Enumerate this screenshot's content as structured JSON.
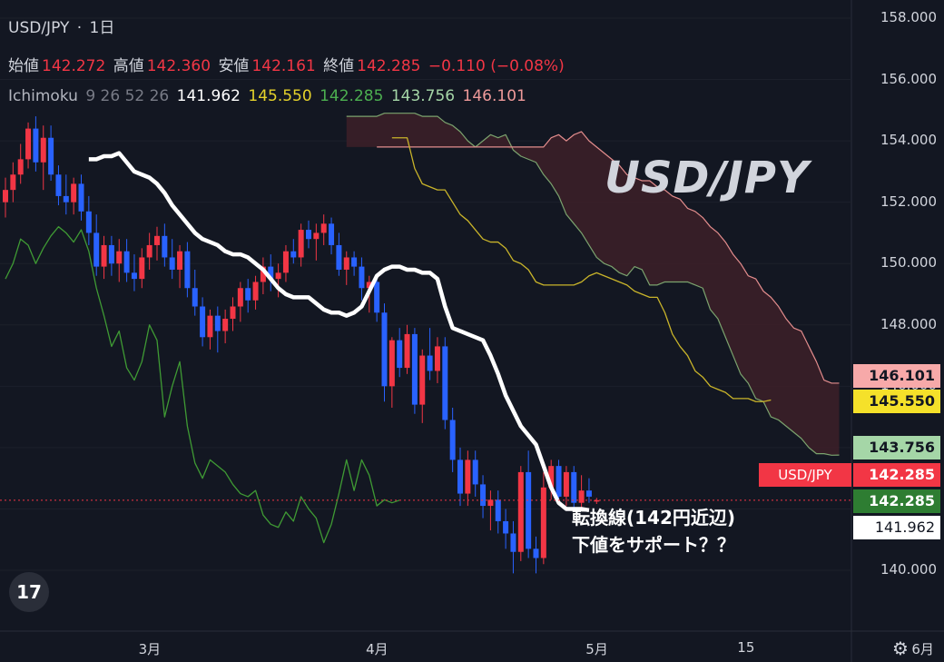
{
  "header": {
    "symbol": "USD/JPY",
    "sep": "·",
    "interval": "1日",
    "open_label": "始値",
    "open": "142.272",
    "high_label": "高値",
    "high": "142.360",
    "low_label": "安値",
    "low": "142.161",
    "close_label": "終値",
    "close": "142.285",
    "change": "−0.110 (−0.08%)",
    "indicator_name": "Ichimoku",
    "indicator_params": "9 26 52 26",
    "ind_v1": "141.962",
    "ind_v2": "145.550",
    "ind_v3": "142.285",
    "ind_v4": "143.756",
    "ind_v5": "146.101"
  },
  "overlay_title": "USD/JPY",
  "annotation": {
    "line1": "転換線(142円近辺)",
    "line2": "下値をサポート？？"
  },
  "badges": {
    "senkou_b": "146.101",
    "kijun": "145.550",
    "senkou_a": "143.756",
    "symbol_label": "USD/JPY",
    "price": "142.285",
    "chikou": "142.285",
    "tenkan": "141.962"
  },
  "logo_text": "17",
  "colors": {
    "background": "#131722",
    "up": "#f23645",
    "down": "#2962ff",
    "tenkan": "#ffffff",
    "kijun": "#c9b42a",
    "chikou": "#3f9a34",
    "senkou_a": "#7ba36e",
    "senkou_b": "#e38d8d",
    "cloud": "#3d2028"
  },
  "chart_data": {
    "type": "candlestick",
    "title": "USD/JPY",
    "interval": "1日",
    "ylim": [
      138.5,
      158.5
    ],
    "yticks": [
      140.0,
      142.0,
      144.0,
      146.0,
      148.0,
      150.0,
      152.0,
      154.0,
      156.0,
      158.0
    ],
    "ytick_labels": [
      "140.000",
      "142.000",
      "144.000",
      "146.000",
      "148.000",
      "150.000",
      "152.000",
      "154.000",
      "156.000",
      "158.000"
    ],
    "xticks": [
      {
        "label": "3月",
        "bar": 19
      },
      {
        "label": "4月",
        "bar": 49
      },
      {
        "label": "5月",
        "bar": 78
      },
      {
        "label": "15",
        "bar": 98
      },
      {
        "label": "6月",
        "bar": 121
      }
    ],
    "ohlc": [
      [
        152.0,
        152.8,
        151.5,
        152.4
      ],
      [
        152.4,
        153.3,
        152.0,
        152.9
      ],
      [
        152.9,
        153.9,
        152.6,
        153.4
      ],
      [
        153.4,
        154.6,
        153.1,
        154.4
      ],
      [
        154.4,
        154.8,
        153.0,
        153.3
      ],
      [
        153.3,
        154.5,
        152.4,
        154.1
      ],
      [
        154.1,
        154.5,
        152.7,
        152.9
      ],
      [
        152.9,
        153.2,
        151.9,
        152.2
      ],
      [
        152.2,
        152.9,
        151.6,
        152.0
      ],
      [
        152.0,
        152.8,
        151.6,
        152.6
      ],
      [
        152.6,
        152.9,
        151.4,
        151.7
      ],
      [
        151.7,
        152.2,
        150.6,
        151.0
      ],
      [
        151.0,
        151.6,
        149.6,
        149.9
      ],
      [
        149.9,
        150.9,
        149.5,
        150.6
      ],
      [
        150.6,
        150.9,
        149.6,
        150.0
      ],
      [
        150.0,
        150.8,
        149.4,
        150.4
      ],
      [
        150.4,
        150.8,
        149.4,
        149.7
      ],
      [
        149.7,
        150.3,
        149.1,
        149.5
      ],
      [
        149.5,
        150.5,
        149.2,
        150.2
      ],
      [
        150.2,
        151.0,
        149.8,
        150.6
      ],
      [
        150.6,
        151.2,
        150.1,
        150.9
      ],
      [
        150.9,
        151.3,
        149.9,
        150.2
      ],
      [
        150.2,
        150.8,
        149.5,
        149.8
      ],
      [
        149.8,
        150.6,
        149.2,
        150.4
      ],
      [
        150.4,
        150.7,
        148.9,
        149.2
      ],
      [
        149.2,
        149.8,
        148.3,
        148.6
      ],
      [
        148.6,
        148.9,
        147.3,
        147.6
      ],
      [
        147.6,
        148.5,
        147.2,
        148.3
      ],
      [
        148.3,
        148.6,
        147.1,
        147.8
      ],
      [
        147.8,
        148.5,
        147.4,
        148.2
      ],
      [
        148.2,
        148.9,
        147.8,
        148.6
      ],
      [
        148.6,
        149.4,
        148.1,
        149.2
      ],
      [
        149.2,
        149.5,
        148.4,
        148.8
      ],
      [
        148.8,
        149.6,
        148.5,
        149.4
      ],
      [
        149.4,
        150.2,
        149.0,
        149.9
      ],
      [
        149.9,
        150.3,
        149.1,
        149.5
      ],
      [
        149.5,
        150.0,
        148.9,
        149.7
      ],
      [
        149.7,
        150.6,
        149.4,
        150.4
      ],
      [
        150.4,
        150.8,
        150.0,
        150.2
      ],
      [
        150.2,
        151.3,
        149.9,
        151.1
      ],
      [
        151.1,
        151.4,
        150.5,
        150.8
      ],
      [
        150.8,
        151.3,
        150.1,
        151.0
      ],
      [
        151.0,
        151.6,
        150.6,
        151.3
      ],
      [
        151.3,
        151.5,
        150.3,
        150.6
      ],
      [
        150.6,
        151.0,
        149.6,
        149.8
      ],
      [
        149.8,
        150.4,
        149.3,
        150.2
      ],
      [
        150.2,
        150.4,
        149.6,
        149.9
      ],
      [
        149.9,
        150.2,
        148.8,
        149.2
      ],
      [
        149.2,
        149.6,
        148.4,
        149.4
      ],
      [
        149.4,
        149.6,
        148.1,
        148.4
      ],
      [
        148.4,
        148.7,
        145.5,
        146.0
      ],
      [
        146.0,
        147.6,
        145.3,
        147.5
      ],
      [
        147.5,
        147.9,
        146.3,
        146.6
      ],
      [
        146.6,
        148.0,
        146.4,
        147.7
      ],
      [
        147.7,
        147.9,
        145.1,
        145.4
      ],
      [
        145.4,
        147.2,
        144.8,
        147.0
      ],
      [
        147.0,
        147.9,
        146.2,
        146.5
      ],
      [
        146.5,
        147.6,
        146.1,
        147.3
      ],
      [
        147.3,
        147.6,
        144.6,
        144.9
      ],
      [
        144.9,
        145.3,
        143.2,
        143.6
      ],
      [
        143.6,
        144.0,
        142.1,
        142.5
      ],
      [
        142.5,
        143.9,
        142.1,
        143.6
      ],
      [
        143.6,
        143.9,
        142.4,
        142.8
      ],
      [
        142.8,
        143.1,
        141.7,
        142.1
      ],
      [
        142.1,
        142.6,
        141.3,
        142.3
      ],
      [
        142.3,
        142.6,
        141.2,
        141.6
      ],
      [
        141.6,
        142.0,
        140.7,
        141.2
      ],
      [
        141.2,
        141.6,
        139.9,
        140.6
      ],
      [
        140.6,
        143.4,
        140.3,
        143.2
      ],
      [
        143.2,
        143.9,
        140.4,
        140.7
      ],
      [
        140.7,
        141.1,
        139.9,
        140.4
      ],
      [
        140.4,
        143.2,
        140.2,
        142.7
      ],
      [
        142.7,
        143.6,
        142.3,
        143.4
      ],
      [
        143.4,
        143.6,
        142.2,
        142.4
      ],
      [
        142.4,
        143.4,
        142.1,
        143.2
      ],
      [
        143.2,
        143.4,
        142.0,
        142.2
      ],
      [
        142.2,
        143.1,
        142.0,
        142.6
      ],
      [
        142.6,
        143.0,
        142.2,
        142.4
      ],
      [
        142.272,
        142.36,
        142.161,
        142.285
      ]
    ],
    "tenkan": [
      153.4,
      153.4,
      153.5,
      153.5,
      153.6,
      153.3,
      153.0,
      152.9,
      152.8,
      152.6,
      152.3,
      151.9,
      151.6,
      151.3,
      151.0,
      150.8,
      150.7,
      150.6,
      150.4,
      150.3,
      150.3,
      150.2,
      150.0,
      149.8,
      149.5,
      149.2,
      149.0,
      148.9,
      148.9,
      148.9,
      148.7,
      148.5,
      148.4,
      148.4,
      148.3,
      148.4,
      148.6,
      149.1,
      149.6,
      149.8,
      149.9,
      149.9,
      149.8,
      149.8,
      149.7,
      149.7,
      149.5,
      148.6,
      147.9,
      147.8,
      147.7,
      147.6,
      147.5,
      147.0,
      146.4,
      145.7,
      145.2,
      144.7,
      144.4,
      144.1,
      143.4,
      142.7,
      142.2,
      142.0,
      142.0,
      142.0,
      141.96
    ],
    "kijun": [
      154.1,
      154.1,
      154.1,
      153.1,
      152.6,
      152.5,
      152.4,
      152.4,
      152.0,
      151.6,
      151.4,
      151.1,
      150.8,
      150.7,
      150.7,
      150.5,
      150.1,
      150.0,
      149.8,
      149.4,
      149.3,
      149.3,
      149.3,
      149.3,
      149.3,
      149.4,
      149.6,
      149.7,
      149.6,
      149.5,
      149.4,
      149.3,
      149.1,
      149.0,
      148.9,
      148.9,
      148.4,
      147.7,
      147.3,
      147.0,
      146.5,
      146.3,
      146.0,
      145.9,
      145.8,
      145.6,
      145.6,
      145.6,
      145.5,
      145.5,
      145.55
    ],
    "chikou": [
      149.5,
      150.0,
      150.8,
      150.6,
      150.0,
      150.5,
      150.9,
      151.2,
      151.0,
      150.7,
      151.1,
      150.4,
      149.2,
      148.3,
      147.3,
      147.8,
      146.6,
      146.2,
      146.8,
      148.0,
      147.5,
      145.0,
      146.0,
      146.8,
      144.7,
      143.5,
      143.0,
      143.6,
      143.4,
      143.2,
      142.8,
      142.5,
      142.4,
      142.6,
      141.8,
      141.5,
      141.4,
      141.9,
      141.6,
      142.4,
      142.0,
      141.7,
      140.9,
      141.5,
      142.5,
      143.6,
      142.6,
      143.6,
      143.1,
      142.1,
      142.3,
      142.2,
      142.285
    ],
    "senkou_a": [
      154.8,
      154.8,
      154.8,
      154.8,
      154.8,
      154.9,
      154.9,
      154.9,
      154.9,
      154.9,
      154.8,
      154.8,
      154.8,
      154.6,
      154.5,
      154.3,
      154.0,
      153.8,
      154.0,
      154.2,
      154.1,
      154.2,
      153.7,
      153.5,
      153.4,
      153.3,
      152.9,
      152.6,
      152.2,
      151.6,
      151.3,
      151.0,
      150.6,
      150.2,
      150.0,
      149.9,
      149.7,
      149.6,
      149.9,
      149.8,
      149.3,
      149.3,
      149.4,
      149.4,
      149.4,
      149.4,
      149.3,
      149.2,
      148.5,
      148.2,
      147.6,
      147.0,
      146.4,
      146.1,
      145.6,
      145.5,
      145.0,
      144.9,
      144.7,
      144.5,
      144.3,
      144.0,
      143.8,
      143.8,
      143.75,
      143.756
    ],
    "senkou_b": [
      153.8,
      153.8,
      153.8,
      153.8,
      153.8,
      153.8,
      153.8,
      153.8,
      153.8,
      153.8,
      153.8,
      153.8,
      153.8,
      153.8,
      153.8,
      153.8,
      153.8,
      153.8,
      153.8,
      153.8,
      153.8,
      153.8,
      153.8,
      154.1,
      154.2,
      154.0,
      154.2,
      154.3,
      154.0,
      153.8,
      153.6,
      153.4,
      153.2,
      152.9,
      152.8,
      152.7,
      152.7,
      152.5,
      152.4,
      152.2,
      152.1,
      151.8,
      151.7,
      151.5,
      151.2,
      151.0,
      150.7,
      150.3,
      150.0,
      149.6,
      149.5,
      149.1,
      148.9,
      148.6,
      148.2,
      147.9,
      147.8,
      147.3,
      146.8,
      146.2,
      146.1,
      146.101
    ],
    "cloud_start_bar": 0,
    "cloud_end_bar": 110,
    "kijun_start_bar": 27,
    "chikou_start_bar": 0,
    "tenkan_start_bar": 11,
    "last_price": 142.285
  }
}
